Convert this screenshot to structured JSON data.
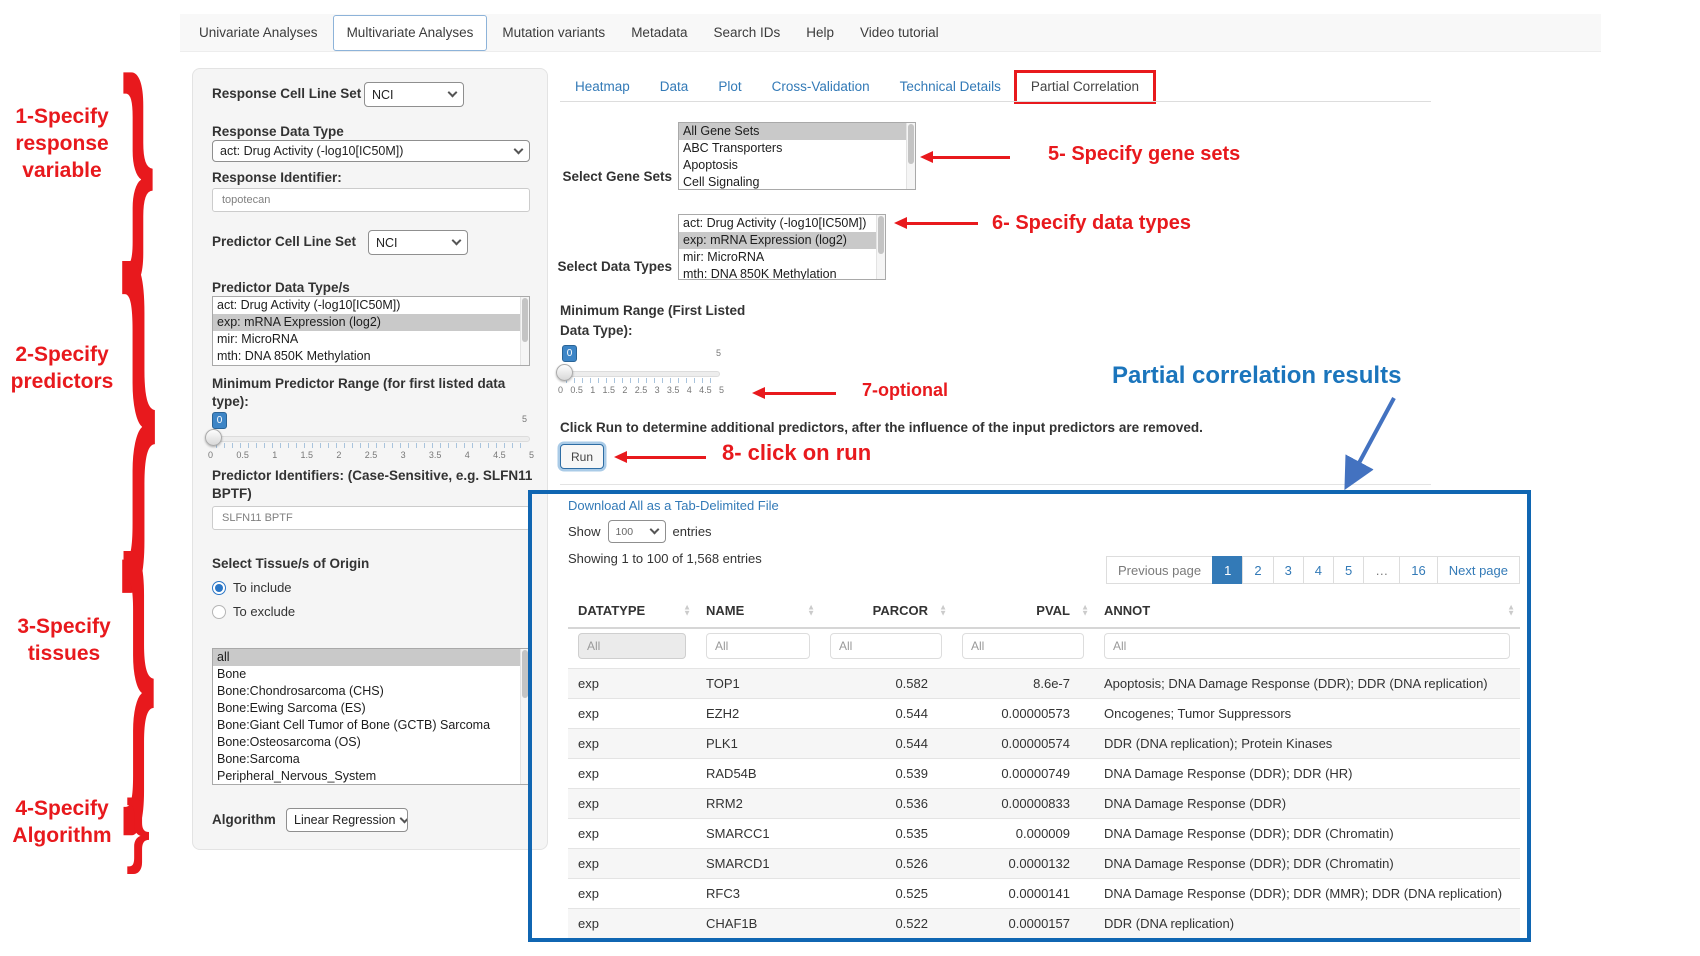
{
  "colors": {
    "annotation_red": "#e8191d",
    "annotation_blue": "#1b75bc",
    "results_box_blue": "#1066b2",
    "link_blue": "#337ab7"
  },
  "nav": {
    "items": [
      {
        "label": "Univariate Analyses",
        "active": false
      },
      {
        "label": "Multivariate Analyses",
        "active": true
      },
      {
        "label": "Mutation variants",
        "active": false
      },
      {
        "label": "Metadata",
        "active": false
      },
      {
        "label": "Search IDs",
        "active": false
      },
      {
        "label": "Help",
        "active": false
      },
      {
        "label": "Video tutorial",
        "active": false
      }
    ]
  },
  "form": {
    "response_cell_line_set_label": "Response Cell Line Set",
    "response_cell_line_set_value": "NCI",
    "response_data_type_label": "Response Data Type",
    "response_data_type_value": "act: Drug Activity (-log10[IC50M])",
    "response_identifier_label": "Response Identifier:",
    "response_identifier_value": "topotecan",
    "predictor_cell_line_set_label": "Predictor Cell Line Set",
    "predictor_cell_line_set_value": "NCI",
    "predictor_data_types_label": "Predictor Data Type/s",
    "predictor_data_types_options": [
      "act: Drug Activity (-log10[IC50M])",
      "exp: mRNA Expression (log2)",
      "mir: MicroRNA",
      "mth: DNA 850K Methylation"
    ],
    "predictor_data_types_selected": "exp: mRNA Expression (log2)",
    "min_range_label_1": "Minimum Predictor Range (for first listed data",
    "min_range_label_2": "type):",
    "min_range_value": "0",
    "min_range_max": "5",
    "slider_ticks": [
      "0",
      "0.5",
      "1",
      "1.5",
      "2",
      "2.5",
      "3",
      "3.5",
      "4",
      "4.5",
      "5"
    ],
    "predictor_identifiers_label_1": "Predictor Identifiers: (Case-Sensitive, e.g. SLFN11",
    "predictor_identifiers_label_2": "BPTF)",
    "predictor_identifiers_value": "SLFN11 BPTF",
    "tissue_label": "Select Tissue/s of Origin",
    "tissue_radio_include": "To include",
    "tissue_radio_exclude": "To exclude",
    "tissue_options": [
      "all",
      "Bone",
      "Bone:Chondrosarcoma (CHS)",
      "Bone:Ewing Sarcoma (ES)",
      "Bone:Giant Cell Tumor of Bone (GCTB) Sarcoma",
      "Bone:Osteosarcoma (OS)",
      "Bone:Sarcoma",
      "Peripheral_Nervous_System"
    ],
    "tissue_selected": "all",
    "algorithm_label": "Algorithm",
    "algorithm_value": "Linear Regression"
  },
  "result_tabs": {
    "items": [
      "Heatmap",
      "Data",
      "Plot",
      "Cross-Validation",
      "Technical Details",
      "Partial Correlation"
    ],
    "active": "Partial Correlation"
  },
  "partial": {
    "gene_sets_label": "Select Gene Sets",
    "gene_sets_options": [
      "All Gene Sets",
      "ABC Transporters",
      "Apoptosis",
      "Cell Signaling"
    ],
    "gene_sets_selected": "All Gene Sets",
    "data_types_label": "Select Data Types",
    "data_types_options": [
      "act: Drug Activity (-log10[IC50M])",
      "exp: mRNA Expression (log2)",
      "mir: MicroRNA",
      "mth: DNA 850K Methylation"
    ],
    "data_types_selected": "exp: mRNA Expression (log2)",
    "min_range_label_1": "Minimum Range (First Listed",
    "min_range_label_2": "Data Type):",
    "min_range_value": "0",
    "min_range_max": "5",
    "slider_ticks": [
      "0",
      "0.5",
      "1",
      "1.5",
      "2",
      "2.5",
      "3",
      "3.5",
      "4",
      "4.5",
      "5"
    ],
    "run_instruction": "Click Run to determine additional predictors, after the influence of the input predictors are removed.",
    "run_button": "Run"
  },
  "results": {
    "download_link": "Download All as a Tab-Delimited File",
    "show_label": "Show",
    "page_size": "100",
    "entries_label": "entries",
    "info": "Showing 1 to 100 of 1,568 entries",
    "pagination": {
      "prev": "Previous page",
      "pages": [
        "1",
        "2",
        "3",
        "4",
        "5",
        "…",
        "16"
      ],
      "active": "1",
      "next": "Next page"
    },
    "table": {
      "columns": [
        "DATATYPE",
        "NAME",
        "PARCOR",
        "PVAL",
        "ANNOT"
      ],
      "filter_placeholder": "All",
      "rows": [
        [
          "exp",
          "TOP1",
          "0.582",
          "8.6e-7",
          "Apoptosis; DNA Damage Response (DDR); DDR (DNA replication)"
        ],
        [
          "exp",
          "EZH2",
          "0.544",
          "0.00000573",
          "Oncogenes; Tumor Suppressors"
        ],
        [
          "exp",
          "PLK1",
          "0.544",
          "0.00000574",
          "DDR (DNA replication); Protein Kinases"
        ],
        [
          "exp",
          "RAD54B",
          "0.539",
          "0.00000749",
          "DNA Damage Response (DDR); DDR (HR)"
        ],
        [
          "exp",
          "RRM2",
          "0.536",
          "0.00000833",
          "DNA Damage Response (DDR)"
        ],
        [
          "exp",
          "SMARCC1",
          "0.535",
          "0.000009",
          "DNA Damage Response (DDR); DDR (Chromatin)"
        ],
        [
          "exp",
          "SMARCD1",
          "0.526",
          "0.0000132",
          "DNA Damage Response (DDR); DDR (Chromatin)"
        ],
        [
          "exp",
          "RFC3",
          "0.525",
          "0.0000141",
          "DNA Damage Response (DDR); DDR (MMR); DDR (DNA replication)"
        ],
        [
          "exp",
          "CHAF1B",
          "0.522",
          "0.0000157",
          "DDR (DNA replication)"
        ]
      ]
    }
  },
  "annotations": {
    "step1": [
      "1-Specify",
      "response",
      "variable"
    ],
    "step2": [
      "2-Specify",
      "predictors"
    ],
    "step3": [
      "3-Specify",
      "tissues"
    ],
    "step4": [
      "4-Specify",
      "Algorithm"
    ],
    "step5": "5- Specify gene sets",
    "step6": "6- Specify data types",
    "step7": "7-optional",
    "step8": "8- click on run",
    "results_title": "Partial correlation results"
  }
}
